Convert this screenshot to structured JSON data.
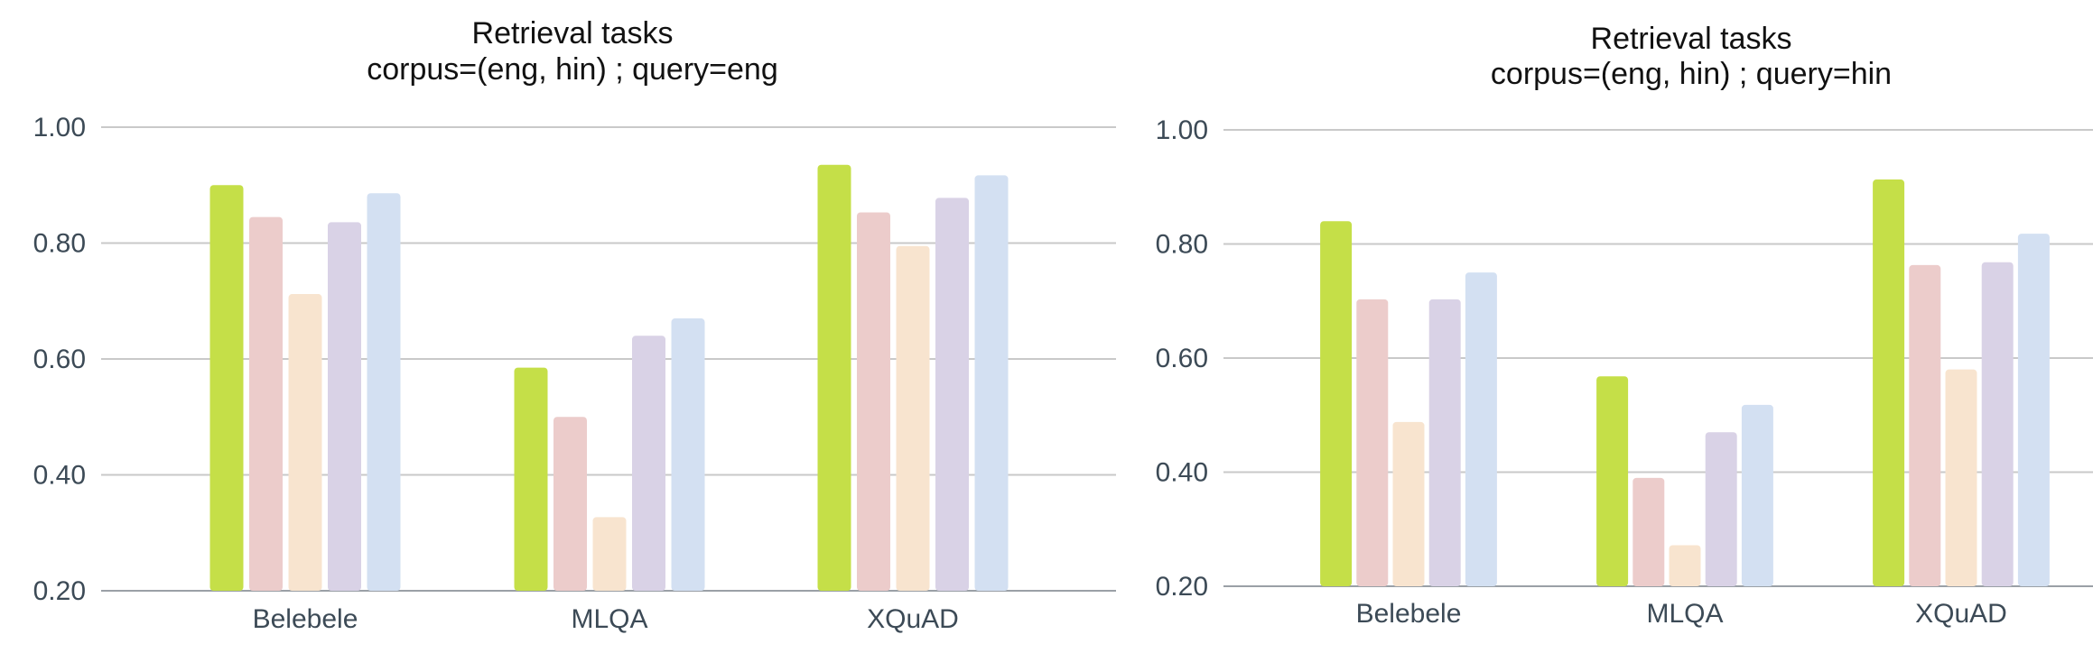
{
  "chart_data": [
    {
      "type": "bar",
      "title": [
        "Retrieval tasks",
        "corpus=(eng, hin) ; query=eng"
      ],
      "categories": [
        "Belebele",
        "MLQA",
        "XQuAD"
      ],
      "ylim": [
        0.2,
        1.0
      ],
      "yticks": [
        "0.20",
        "0.40",
        "0.60",
        "0.80",
        "1.00"
      ],
      "grid": true,
      "legend": "none",
      "series": [
        {
          "color": "#c5df48",
          "values": [
            0.9,
            0.585,
            0.935
          ]
        },
        {
          "color": "#eccccb",
          "values": [
            0.845,
            0.5,
            0.853
          ]
        },
        {
          "color": "#f8e4cf",
          "values": [
            0.712,
            0.327,
            0.795
          ]
        },
        {
          "color": "#d9d2e6",
          "values": [
            0.836,
            0.64,
            0.878
          ]
        },
        {
          "color": "#d3e0f2",
          "values": [
            0.886,
            0.67,
            0.917
          ]
        }
      ]
    },
    {
      "type": "bar",
      "title": [
        "Retrieval tasks",
        "corpus=(eng, hin) ; query=hin"
      ],
      "categories": [
        "Belebele",
        "MLQA",
        "XQuAD"
      ],
      "ylim": [
        0.2,
        1.0
      ],
      "yticks": [
        "0.20",
        "0.40",
        "0.60",
        "0.80",
        "1.00"
      ],
      "grid": true,
      "legend": "none",
      "series": [
        {
          "color": "#c5df48",
          "values": [
            0.84,
            0.568,
            0.913
          ]
        },
        {
          "color": "#eccccb",
          "values": [
            0.703,
            0.39,
            0.763
          ]
        },
        {
          "color": "#f8e4cf",
          "values": [
            0.488,
            0.272,
            0.58
          ]
        },
        {
          "color": "#d9d2e6",
          "values": [
            0.703,
            0.47,
            0.768
          ]
        },
        {
          "color": "#d3e0f2",
          "values": [
            0.75,
            0.518,
            0.818
          ]
        }
      ]
    }
  ]
}
